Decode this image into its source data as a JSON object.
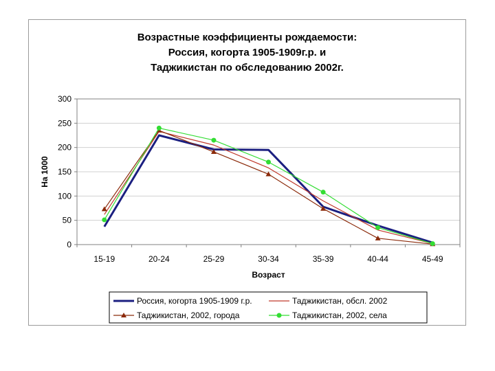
{
  "chart_data": {
    "type": "line",
    "title_lines": [
      "Возрастные коэффициенты рождаемости:",
      "Россия, когорта 1905-1909г.р. и",
      "Таджикистан по обследованию 2002г."
    ],
    "xlabel": "Возраст",
    "ylabel": "На 1000",
    "categories": [
      "15-19",
      "20-24",
      "25-29",
      "30-34",
      "35-39",
      "40-44",
      "45-49"
    ],
    "ylim": [
      0,
      300
    ],
    "yticks": [
      0,
      50,
      100,
      150,
      200,
      250,
      300
    ],
    "grid": true,
    "legend_position": "bottom",
    "series": [
      {
        "name": "Россия, когорта 1905-1909 г.р.",
        "values": [
          37,
          225,
          196,
          195,
          78,
          39,
          4
        ],
        "color": "#1b1f80",
        "marker": "none",
        "line": "thick"
      },
      {
        "name": "Таджикистан, обсл. 2002",
        "values": [
          62,
          233,
          205,
          158,
          90,
          30,
          2
        ],
        "color": "#c0392b",
        "marker": "none",
        "line": "thin"
      },
      {
        "name": "Таджикистан, 2002, города",
        "values": [
          73,
          235,
          191,
          145,
          74,
          13,
          1
        ],
        "color": "#8b2a0a",
        "marker": "triangle",
        "line": "thin"
      },
      {
        "name": "Таджикистан, 2002, села",
        "values": [
          51,
          240,
          215,
          170,
          108,
          35,
          2
        ],
        "color": "#33dd33",
        "marker": "circle",
        "line": "thin"
      }
    ]
  }
}
